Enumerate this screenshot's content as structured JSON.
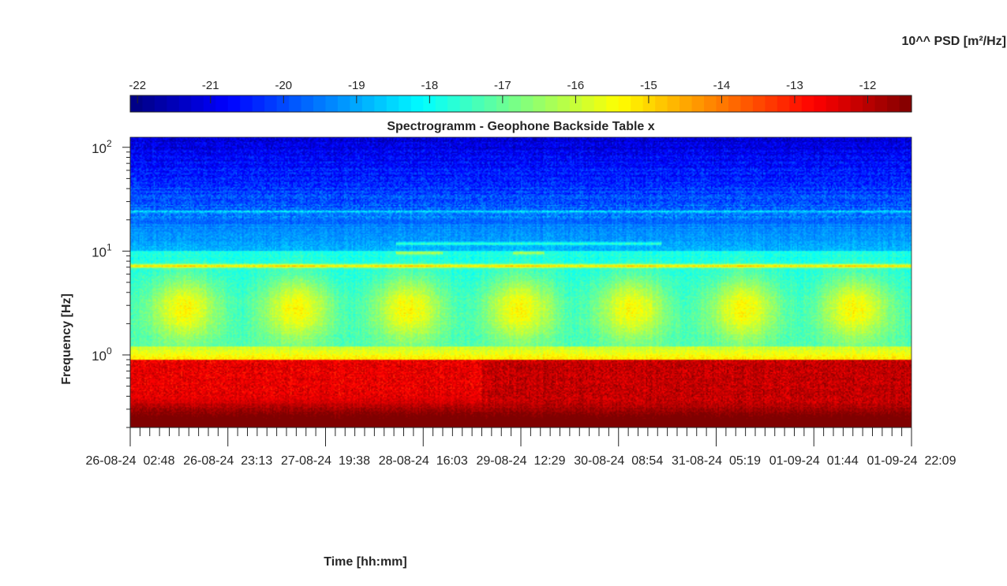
{
  "chart_data": {
    "type": "heatmap",
    "title": "Spectrogramm - Geophone Backside Table x",
    "xlabel": "Time [hh:mm]",
    "ylabel": "Frequency [Hz]",
    "y_scale": "log",
    "ylim": [
      0.2,
      125
    ],
    "y_ticks": [
      {
        "base": "10",
        "exp": "2",
        "value": 100
      },
      {
        "base": "10",
        "exp": "1",
        "value": 10
      },
      {
        "base": "10",
        "exp": "0",
        "value": 1
      }
    ],
    "x_tick_labels": [
      "26-08-24  02:48",
      "26-08-24  23:13",
      "27-08-24  19:38",
      "28-08-24  16:03",
      "29-08-24  12:29",
      "30-08-24  08:54",
      "31-08-24  05:19",
      "01-09-24  01:44",
      "01-09-24  22:09"
    ],
    "colorbar": {
      "label": "10^^ PSD [m²/Hz]",
      "position": "top",
      "colormap": "jet",
      "range": [
        -22.1,
        -11.4
      ],
      "ticks": [
        -22,
        -21,
        -20,
        -19,
        -18,
        -17,
        -16,
        -15,
        -14,
        -13,
        -12
      ]
    },
    "features": {
      "daily_activity_peaks_count": 7,
      "persistent_line_hz": 7.2,
      "low_frequency_band_hz": [
        0.2,
        0.9
      ],
      "low_frequency_level": -12
    }
  }
}
